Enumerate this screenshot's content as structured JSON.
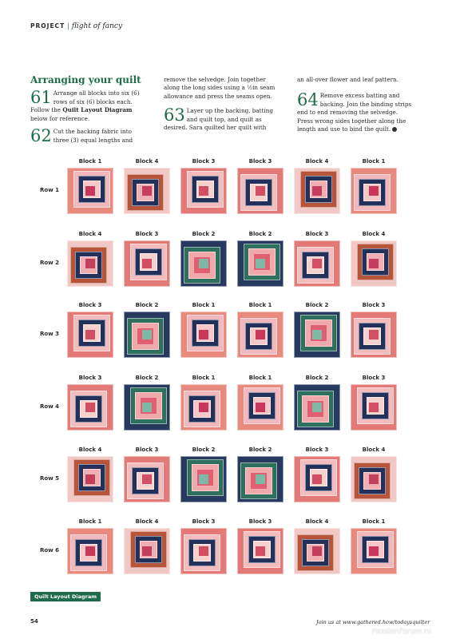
{
  "header": {
    "project": "PROJECT",
    "separator": "|",
    "subtitle": "flight of fancy"
  },
  "section_title": "Arranging your quilt",
  "steps": [
    {
      "num": "61",
      "text": "Arrange all blocks into six (6) rows of six (6) blocks each. Follow the ",
      "bold": "Quilt Layout Diagram",
      "text2": " below for reference."
    },
    {
      "num": "62",
      "text": "Cut the backing fabric into three (3) equal lengths and"
    },
    {
      "cont": "remove the selvedge. Join together along the long sides using a ½in seam allowance and press the seams open."
    },
    {
      "num": "63",
      "text": "Layer up the backing, batting and quilt top, and quilt as desired. Sara quilted her quilt with"
    },
    {
      "cont": "an all-over flower and leaf pattern."
    },
    {
      "num": "64",
      "text": "Remove excess batting and backing. Join the binding strips end to end removing the selvedge. Press wrong sides together along the length and use to bind the quilt."
    }
  ],
  "rows": [
    {
      "label": "Row 1",
      "blocks": [
        "Block 1",
        "Block 4",
        "Block 3",
        "Block 3",
        "Block 4",
        "Block 1"
      ]
    },
    {
      "label": "Row 2",
      "blocks": [
        "Block 4",
        "Block 3",
        "Block 2",
        "Block 2",
        "Block 3",
        "Block 4"
      ]
    },
    {
      "label": "Row 3",
      "blocks": [
        "Block 3",
        "Block 2",
        "Block 1",
        "Block 1",
        "Block 2",
        "Block 3"
      ]
    },
    {
      "label": "Row 4",
      "blocks": [
        "Block 3",
        "Block 2",
        "Block 1",
        "Block 1",
        "Block 2",
        "Block 3"
      ]
    },
    {
      "label": "Row 5",
      "blocks": [
        "Block 4",
        "Block 3",
        "Block 2",
        "Block 2",
        "Block 3",
        "Block 4"
      ]
    },
    {
      "label": "Row 6",
      "blocks": [
        "Block 1",
        "Block 4",
        "Block 3",
        "Block 3",
        "Block 4",
        "Block 1"
      ]
    }
  ],
  "block_colors": {
    "Block 1": [
      "#e98a7f",
      "#f2b9bc",
      "#22305a",
      "#f4c8c8",
      "#c9375a"
    ],
    "Block 2": [
      "#27395f",
      "#2f6f5e",
      "#f0a8aa",
      "#e05f70",
      "#7fb8a4"
    ],
    "Block 3": [
      "#e37a78",
      "#f3bdbd",
      "#22305a",
      "#f6d2cf",
      "#d24e62"
    ],
    "Block 4": [
      "#f1c8c6",
      "#b7553a",
      "#22305a",
      "#f0b0b3",
      "#c43f5e"
    ]
  },
  "caption": "Quilt Layout Diagram",
  "footer": {
    "page": "54",
    "text": "Join us at www.gathered.how/todaysquilter",
    "watermark": "PassionForum.ru"
  }
}
